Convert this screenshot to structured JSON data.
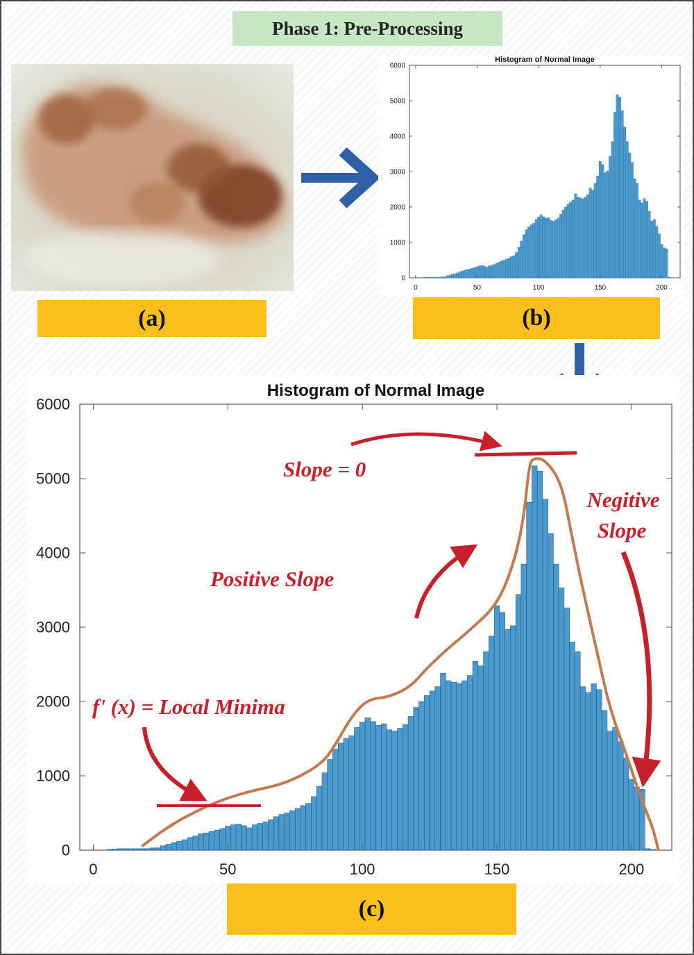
{
  "phase_title": "Phase 1: Pre-Processing",
  "panel_labels": {
    "a": "(a)",
    "b": "(b)",
    "c": "(c)"
  },
  "annotations": {
    "slope_zero": "Slope = 0",
    "positive_slope": "Positive Slope",
    "negative_slope_line1": "Negitive",
    "negative_slope_line2": "Slope",
    "local_minima": "f' (x) = Local Minima"
  },
  "colors": {
    "bar": "#4a9acf",
    "curve": "#c47a4e",
    "annotation": "#c8202a",
    "arrow": "#2f5fa6",
    "label_bar": "#fbbf1c",
    "phase_bg": "#c6e9c4"
  },
  "chart_data": [
    {
      "type": "bar",
      "title": "Histogram of Normal Image",
      "xlabel": "",
      "ylabel": "",
      "xlim": [
        -5,
        215
      ],
      "ylim": [
        0,
        6000
      ],
      "xticks": [
        0,
        50,
        100,
        150,
        200
      ],
      "yticks": [
        0,
        1000,
        2000,
        3000,
        4000,
        5000,
        6000
      ],
      "bin_width": 2,
      "x": [
        6,
        8,
        10,
        12,
        14,
        16,
        18,
        20,
        22,
        24,
        26,
        28,
        30,
        32,
        34,
        36,
        38,
        40,
        42,
        44,
        46,
        48,
        50,
        52,
        54,
        56,
        58,
        60,
        62,
        64,
        66,
        68,
        70,
        72,
        74,
        76,
        78,
        80,
        82,
        84,
        86,
        88,
        90,
        92,
        94,
        96,
        98,
        100,
        102,
        104,
        106,
        108,
        110,
        112,
        114,
        116,
        118,
        120,
        122,
        124,
        126,
        128,
        130,
        132,
        134,
        136,
        138,
        140,
        142,
        144,
        146,
        148,
        150,
        152,
        154,
        156,
        158,
        160,
        162,
        164,
        166,
        168,
        170,
        172,
        174,
        176,
        178,
        180,
        182,
        184,
        186,
        188,
        190,
        192,
        194,
        196,
        198,
        200,
        202,
        204,
        206,
        208
      ],
      "values": [
        10,
        15,
        20,
        20,
        20,
        20,
        20,
        20,
        30,
        30,
        60,
        80,
        100,
        120,
        140,
        170,
        190,
        220,
        230,
        250,
        270,
        290,
        320,
        340,
        350,
        330,
        300,
        340,
        360,
        380,
        410,
        450,
        480,
        500,
        530,
        560,
        600,
        630,
        720,
        860,
        1040,
        1220,
        1360,
        1440,
        1500,
        1540,
        1650,
        1720,
        1780,
        1730,
        1680,
        1700,
        1620,
        1600,
        1640,
        1690,
        1800,
        1920,
        2000,
        2080,
        2140,
        2200,
        2380,
        2280,
        2260,
        2240,
        2280,
        2350,
        2540,
        2480,
        2670,
        2880,
        3290,
        3200,
        2970,
        3020,
        3440,
        3850,
        4680,
        5170,
        5100,
        4720,
        4260,
        3850,
        3530,
        3260,
        2800,
        2670,
        2200,
        2120,
        2240,
        2160,
        1880,
        1600,
        1650,
        1460,
        1240,
        950,
        850,
        820,
        20,
        10
      ]
    },
    {
      "type": "bar",
      "title": "Histogram of Normal Image",
      "xlabel": "",
      "ylabel": "",
      "xlim": [
        -5,
        215
      ],
      "ylim": [
        0,
        6000
      ],
      "xticks": [
        0,
        50,
        100,
        150,
        200
      ],
      "yticks": [
        0,
        1000,
        2000,
        3000,
        4000,
        5000,
        6000
      ],
      "note_same_data_as_panel_c": true
    }
  ],
  "curve_points": [
    [
      18,
      50
    ],
    [
      28,
      320
    ],
    [
      38,
      520
    ],
    [
      48,
      680
    ],
    [
      58,
      790
    ],
    [
      72,
      900
    ],
    [
      85,
      1160
    ],
    [
      90,
      1420
    ],
    [
      96,
      1800
    ],
    [
      102,
      2030
    ],
    [
      110,
      2060
    ],
    [
      118,
      2200
    ],
    [
      124,
      2450
    ],
    [
      132,
      2720
    ],
    [
      140,
      2960
    ],
    [
      150,
      3300
    ],
    [
      156,
      3820
    ],
    [
      160,
      4450
    ],
    [
      162,
      5200
    ],
    [
      164,
      5280
    ],
    [
      168,
      5250
    ],
    [
      174,
      4950
    ],
    [
      178,
      4200
    ],
    [
      182,
      3500
    ],
    [
      187,
      2700
    ],
    [
      192,
      1900
    ],
    [
      198,
      1300
    ],
    [
      204,
      650
    ],
    [
      208,
      300
    ],
    [
      210,
      0
    ]
  ]
}
